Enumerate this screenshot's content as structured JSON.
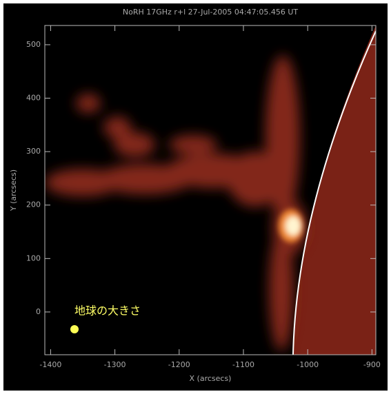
{
  "chart_data": {
    "type": "image",
    "title": "NoRH 17GHz r+l 27-Jul-2005 04:47:05.456 UT",
    "x_label": "X (arcsecs)",
    "y_label": "Y (arcsecs)",
    "annotation": "地球の大きさ",
    "xlim": [
      -1409,
      -894
    ],
    "ylim": [
      -80,
      536
    ],
    "xticks": [
      -1400,
      -1300,
      -1200,
      -1100,
      -1000,
      -900
    ],
    "yticks": [
      0,
      100,
      200,
      300,
      400,
      500
    ]
  }
}
